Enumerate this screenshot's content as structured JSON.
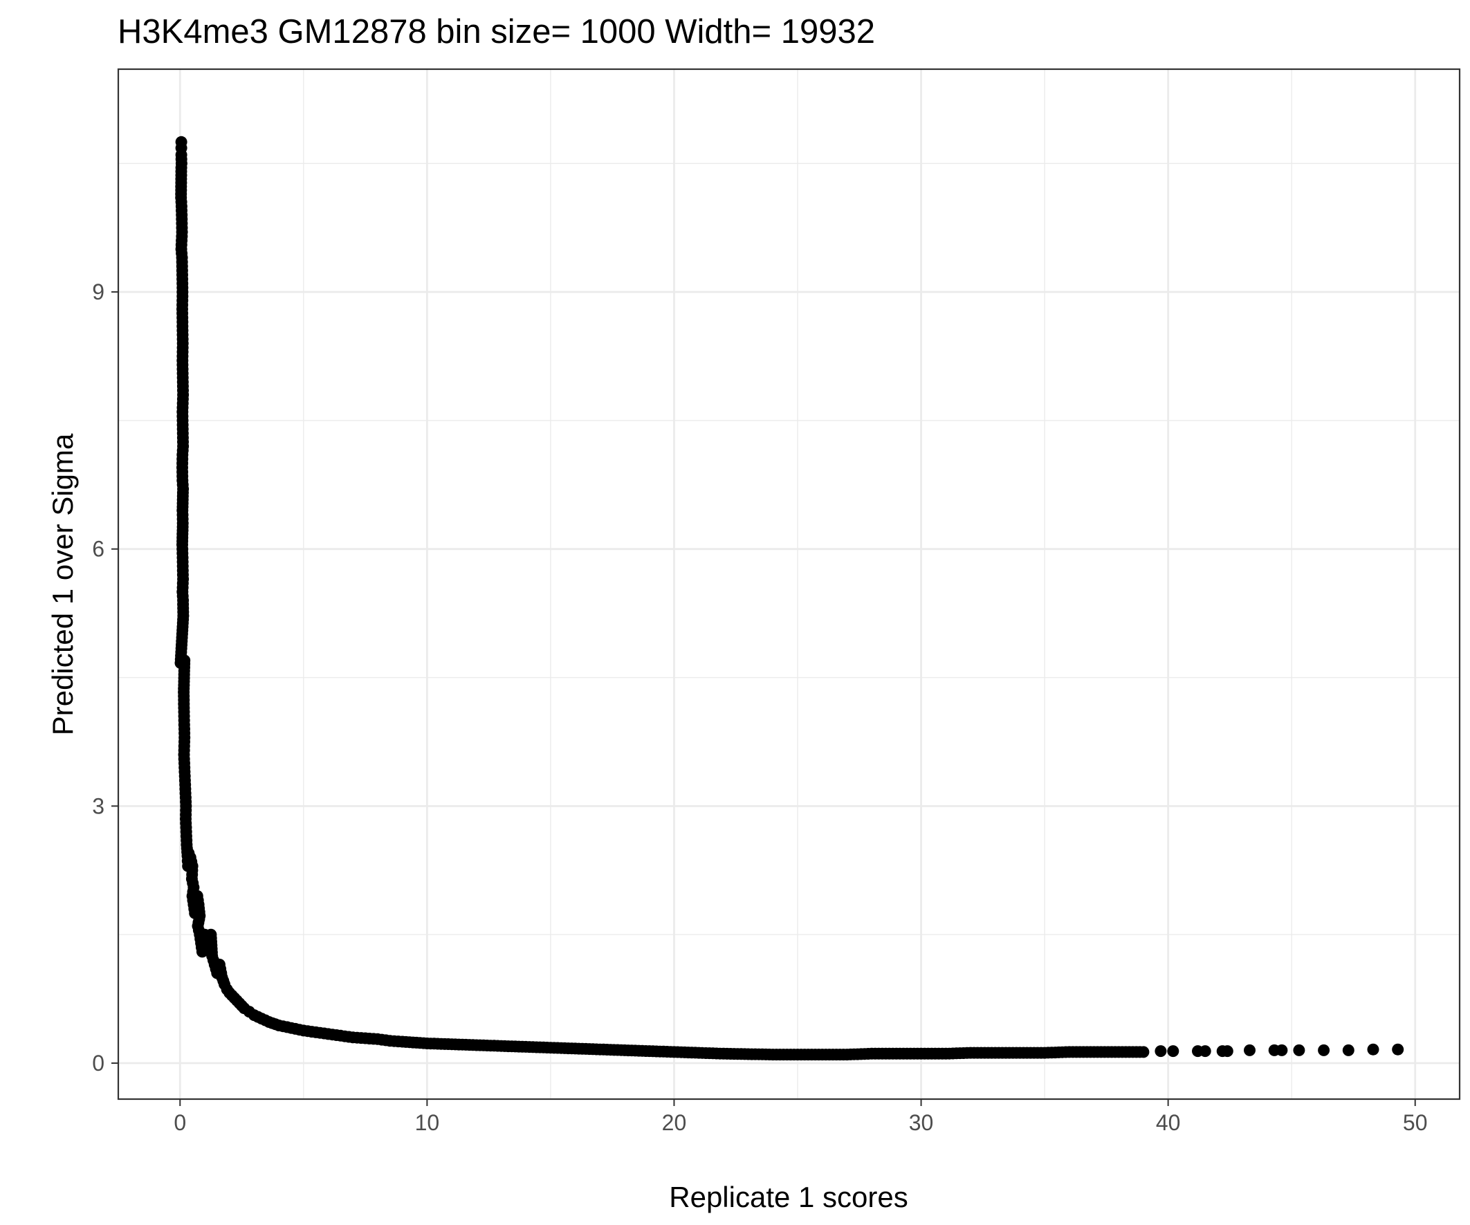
{
  "chart_data": {
    "type": "scatter",
    "title": "H3K4me3 GM12878  bin size=  1000  Width=  19932",
    "xlabel": "Replicate 1 scores",
    "ylabel": "Predicted 1 over Sigma",
    "xlim": [
      -2.5,
      51.8
    ],
    "ylim": [
      -0.42,
      11.6
    ],
    "x_ticks": [
      0,
      10,
      20,
      30,
      40,
      50
    ],
    "y_ticks": [
      0,
      3,
      6,
      9
    ],
    "x_tick_labels": [
      "0",
      "10",
      "20",
      "30",
      "40",
      "50"
    ],
    "y_tick_labels": [
      "0",
      "3",
      "6",
      "9"
    ],
    "grid": true,
    "legend": "none",
    "colors": {
      "point": "#000000",
      "grid": "#ebebeb",
      "panel_border": "#333333",
      "tick_label": "#4d4d4d"
    },
    "series": [
      {
        "points": [
          [
            0.05,
            10.75
          ],
          [
            0.05,
            10.68
          ],
          [
            0.05,
            10.6
          ],
          [
            0.06,
            10.5
          ],
          [
            0.05,
            10.45
          ],
          [
            0.04,
            10.1
          ],
          [
            0.06,
            10.0
          ],
          [
            0.07,
            9.85
          ],
          [
            0.08,
            9.7
          ],
          [
            0.05,
            9.5
          ],
          [
            0.08,
            9.4
          ],
          [
            0.09,
            9.2
          ],
          [
            0.1,
            9.0
          ],
          [
            0.09,
            8.8
          ],
          [
            0.1,
            8.6
          ],
          [
            0.11,
            8.4
          ],
          [
            0.1,
            8.2
          ],
          [
            0.11,
            8.0
          ],
          [
            0.12,
            7.8
          ],
          [
            0.1,
            7.6
          ],
          [
            0.11,
            7.4
          ],
          [
            0.12,
            7.2
          ],
          [
            0.1,
            7.1
          ],
          [
            0.09,
            6.95
          ],
          [
            0.1,
            6.8
          ],
          [
            0.12,
            6.7
          ],
          [
            0.1,
            6.45
          ],
          [
            0.11,
            6.3
          ],
          [
            0.09,
            6.05
          ],
          [
            0.1,
            5.95
          ],
          [
            0.11,
            5.8
          ],
          [
            0.12,
            5.65
          ],
          [
            0.1,
            5.5
          ],
          [
            0.12,
            5.4
          ],
          [
            0.13,
            5.22
          ],
          [
            0.02,
            4.67
          ],
          [
            0.1,
            4.69
          ],
          [
            0.15,
            4.7
          ],
          [
            0.18,
            4.7
          ],
          [
            0.15,
            4.33
          ],
          [
            0.16,
            4.1
          ],
          [
            0.17,
            3.95
          ],
          [
            0.18,
            3.8
          ],
          [
            0.16,
            3.6
          ],
          [
            0.18,
            3.45
          ],
          [
            0.2,
            3.3
          ],
          [
            0.22,
            3.15
          ],
          [
            0.24,
            3.0
          ],
          [
            0.23,
            2.85
          ],
          [
            0.25,
            2.7
          ],
          [
            0.27,
            2.55
          ],
          [
            0.3,
            2.42
          ],
          [
            0.32,
            2.3
          ],
          [
            0.35,
            2.45
          ],
          [
            0.42,
            2.4
          ],
          [
            0.5,
            2.3
          ],
          [
            0.48,
            2.15
          ],
          [
            0.55,
            2.05
          ],
          [
            0.5,
            1.95
          ],
          [
            0.55,
            1.85
          ],
          [
            0.6,
            1.75
          ],
          [
            0.7,
            1.95
          ],
          [
            0.75,
            1.85
          ],
          [
            0.8,
            1.72
          ],
          [
            0.72,
            1.6
          ],
          [
            0.8,
            1.5
          ],
          [
            0.85,
            1.4
          ],
          [
            0.9,
            1.3
          ],
          [
            1.0,
            1.5
          ],
          [
            1.1,
            1.42
          ],
          [
            1.2,
            1.35
          ],
          [
            1.25,
            1.5
          ],
          [
            1.3,
            1.25
          ],
          [
            1.4,
            1.15
          ],
          [
            1.5,
            1.05
          ],
          [
            1.6,
            1.15
          ],
          [
            1.7,
            1.0
          ],
          [
            1.8,
            0.92
          ],
          [
            1.9,
            0.86
          ],
          [
            2.0,
            0.82
          ],
          [
            2.2,
            0.76
          ],
          [
            2.4,
            0.7
          ],
          [
            2.6,
            0.64
          ],
          [
            2.8,
            0.6
          ],
          [
            3.0,
            0.56
          ],
          [
            3.3,
            0.52
          ],
          [
            3.6,
            0.48
          ],
          [
            4.0,
            0.44
          ],
          [
            4.5,
            0.41
          ],
          [
            5.0,
            0.38
          ],
          [
            5.5,
            0.36
          ],
          [
            6.0,
            0.34
          ],
          [
            6.5,
            0.32
          ],
          [
            7.0,
            0.3
          ],
          [
            7.5,
            0.29
          ],
          [
            8.0,
            0.28
          ],
          [
            8.5,
            0.26
          ],
          [
            9.0,
            0.25
          ],
          [
            10.0,
            0.23
          ],
          [
            11.0,
            0.22
          ],
          [
            12.0,
            0.21
          ],
          [
            13.0,
            0.2
          ],
          [
            14.0,
            0.19
          ],
          [
            15.0,
            0.18
          ],
          [
            16.0,
            0.17
          ],
          [
            17.0,
            0.16
          ],
          [
            18.0,
            0.15
          ],
          [
            19.0,
            0.14
          ],
          [
            20.0,
            0.13
          ],
          [
            21.0,
            0.12
          ],
          [
            22.0,
            0.11
          ],
          [
            23.0,
            0.105
          ],
          [
            24.0,
            0.1
          ],
          [
            25.0,
            0.1
          ],
          [
            26.0,
            0.1
          ],
          [
            27.0,
            0.1
          ],
          [
            28.0,
            0.11
          ],
          [
            29.0,
            0.11
          ],
          [
            30.0,
            0.11
          ],
          [
            31.0,
            0.11
          ],
          [
            32.0,
            0.12
          ],
          [
            33.0,
            0.12
          ],
          [
            34.0,
            0.12
          ],
          [
            35.0,
            0.12
          ],
          [
            36.0,
            0.13
          ],
          [
            37.0,
            0.13
          ],
          [
            38.0,
            0.13
          ],
          [
            39.0,
            0.13
          ],
          [
            39.7,
            0.14
          ],
          [
            40.2,
            0.14
          ],
          [
            41.2,
            0.14
          ],
          [
            41.5,
            0.14
          ],
          [
            42.2,
            0.14
          ],
          [
            42.4,
            0.14
          ],
          [
            43.3,
            0.15
          ],
          [
            44.3,
            0.15
          ],
          [
            44.6,
            0.15
          ],
          [
            45.3,
            0.15
          ],
          [
            46.3,
            0.15
          ],
          [
            47.3,
            0.15
          ],
          [
            48.3,
            0.16
          ],
          [
            49.3,
            0.16
          ]
        ]
      }
    ]
  }
}
